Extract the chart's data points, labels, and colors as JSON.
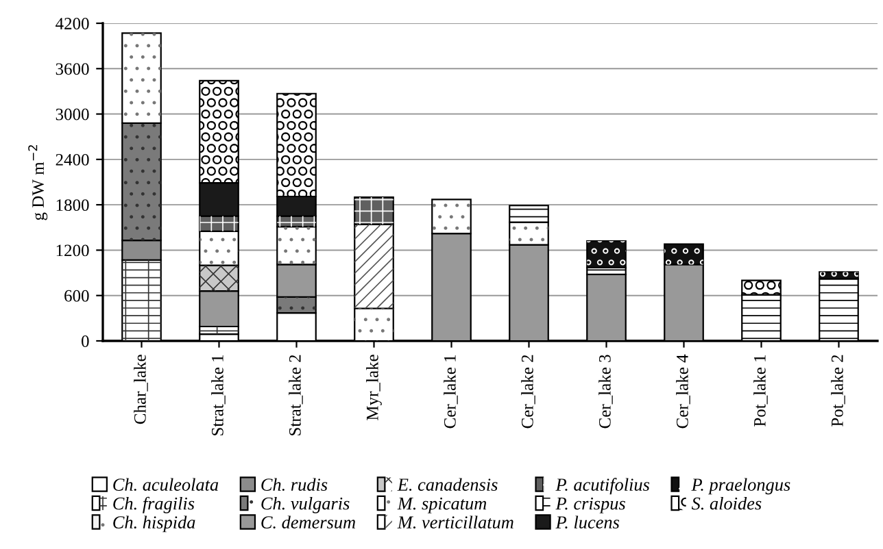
{
  "chart_data": {
    "type": "bar",
    "stacked": true,
    "ylabel": "g DW m$^{−2}$",
    "categories": [
      "Char_lake",
      "Strat_lake 1",
      "Strat_lake 2",
      "Myr_lake",
      "Cer_lake 1",
      "Cer_lake 2",
      "Cer_lake 3",
      "Cer_lake 4",
      "Pot_lake 1",
      "Pot_lake 2"
    ],
    "ylim": [
      0,
      4200
    ],
    "yticks": [
      0,
      600,
      1200,
      1800,
      2400,
      3000,
      3600,
      4200
    ],
    "grid": "y",
    "legend": "bottom",
    "series": [
      {
        "name": "Ch. aculeolata",
        "color": "#ffffff",
        "values": [
          0,
          90,
          370,
          0,
          0,
          0,
          0,
          0,
          0,
          0
        ]
      },
      {
        "name": "Ch. fragilis",
        "color": "#ffffff",
        "values": [
          1070,
          100,
          0,
          0,
          0,
          0,
          0,
          0,
          0,
          0
        ]
      },
      {
        "name": "Ch. hispida",
        "color": "#f2f2f2",
        "values": [
          0,
          0,
          0,
          0,
          0,
          0,
          0,
          0,
          0,
          0
        ]
      },
      {
        "name": "Ch. rudis",
        "color": "#8c8c8c",
        "values": [
          260,
          0,
          0,
          0,
          0,
          0,
          0,
          0,
          0,
          0
        ]
      },
      {
        "name": "Ch. vulgaris",
        "color": "#7a7a7a",
        "values": [
          1550,
          0,
          210,
          0,
          0,
          0,
          0,
          0,
          0,
          0
        ]
      },
      {
        "name": "C. demersum",
        "color": "#999999",
        "values": [
          0,
          470,
          430,
          0,
          1420,
          1270,
          880,
          1010,
          0,
          0
        ]
      },
      {
        "name": "E. canadensis",
        "color": "#c8c8c8",
        "values": [
          0,
          340,
          0,
          0,
          0,
          0,
          0,
          0,
          0,
          0
        ]
      },
      {
        "name": "M. spicatum",
        "color": "#ffffff",
        "values": [
          1190,
          450,
          500,
          430,
          450,
          300,
          0,
          0,
          0,
          0
        ]
      },
      {
        "name": "M. verticillatum",
        "color": "#ffffff",
        "values": [
          0,
          0,
          0,
          1110,
          0,
          0,
          0,
          0,
          0,
          0
        ]
      },
      {
        "name": "P. acutifolius",
        "color": "#606060",
        "values": [
          0,
          200,
          140,
          360,
          0,
          0,
          0,
          0,
          0,
          0
        ]
      },
      {
        "name": "P. crispus",
        "color": "#ffffff",
        "values": [
          0,
          0,
          0,
          0,
          0,
          220,
          90,
          0,
          610,
          820
        ]
      },
      {
        "name": "P. lucens",
        "color": "#1a1a1a",
        "values": [
          0,
          440,
          260,
          0,
          0,
          0,
          0,
          0,
          0,
          0
        ]
      },
      {
        "name": "P. praelongus",
        "color": "#111111",
        "values": [
          0,
          0,
          0,
          0,
          0,
          0,
          350,
          270,
          0,
          90
        ]
      },
      {
        "name": "S. aloides",
        "color": "#ffffff",
        "values": [
          0,
          1350,
          1360,
          0,
          0,
          0,
          0,
          0,
          190,
          0
        ]
      }
    ]
  }
}
